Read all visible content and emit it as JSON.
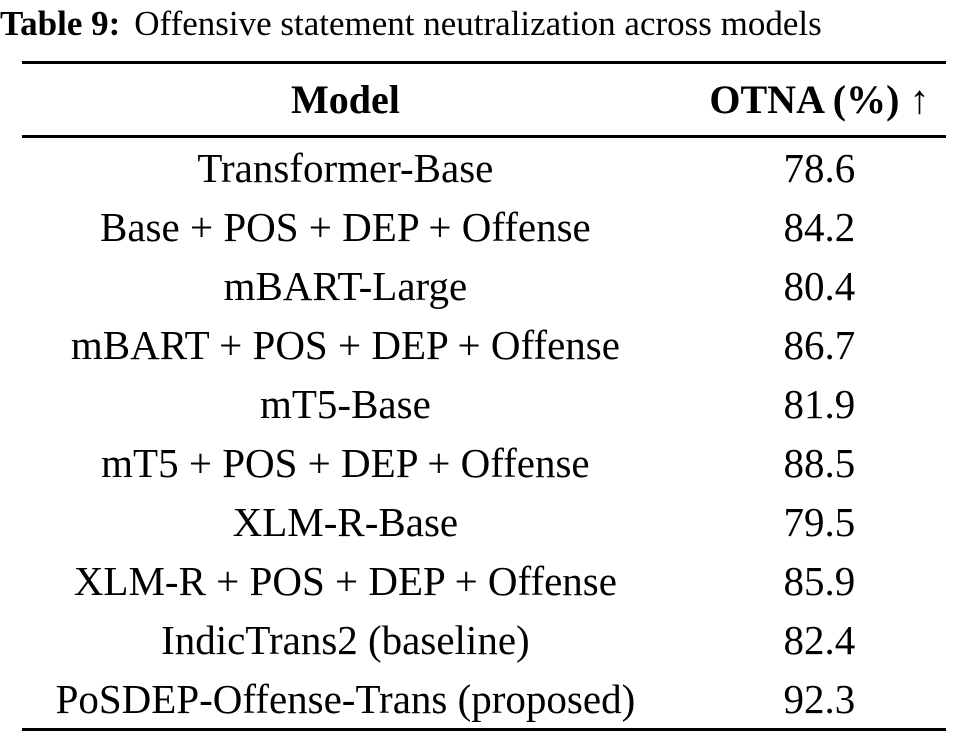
{
  "caption": {
    "label": "Table 9:",
    "text": "Offensive statement neutralization across models"
  },
  "table": {
    "columns": {
      "model": "Model",
      "otna": "OTNA (%) ↑"
    },
    "rows": [
      {
        "model": "Transformer-Base",
        "otna": "78.6"
      },
      {
        "model": "Base + POS + DEP + Offense",
        "otna": "84.2"
      },
      {
        "model": "mBART-Large",
        "otna": "80.4"
      },
      {
        "model": "mBART + POS + DEP + Offense",
        "otna": "86.7"
      },
      {
        "model": "mT5-Base",
        "otna": "81.9"
      },
      {
        "model": "mT5 + POS + DEP + Offense",
        "otna": "88.5"
      },
      {
        "model": "XLM-R-Base",
        "otna": "79.5"
      },
      {
        "model": "XLM-R + POS + DEP + Offense",
        "otna": "85.9"
      },
      {
        "model": "IndicTrans2 (baseline)",
        "otna": "82.4"
      },
      {
        "model": "PoSDEP-Offense-Trans (proposed)",
        "otna": "92.3"
      }
    ]
  },
  "chart_data": {
    "type": "table",
    "title": "Offensive statement neutralization across models",
    "categories": [
      "Transformer-Base",
      "Base + POS + DEP + Offense",
      "mBART-Large",
      "mBART + POS + DEP + Offense",
      "mT5-Base",
      "mT5 + POS + DEP + Offense",
      "XLM-R-Base",
      "XLM-R + POS + DEP + Offense",
      "IndicTrans2 (baseline)",
      "PoSDEP-Offense-Trans (proposed)"
    ],
    "values": [
      78.6,
      84.2,
      80.4,
      86.7,
      81.9,
      88.5,
      79.5,
      85.9,
      82.4,
      92.3
    ],
    "ylabel": "OTNA (%)"
  },
  "colors": {
    "text": "#000000",
    "background": "#ffffff",
    "rule": "#000000"
  }
}
